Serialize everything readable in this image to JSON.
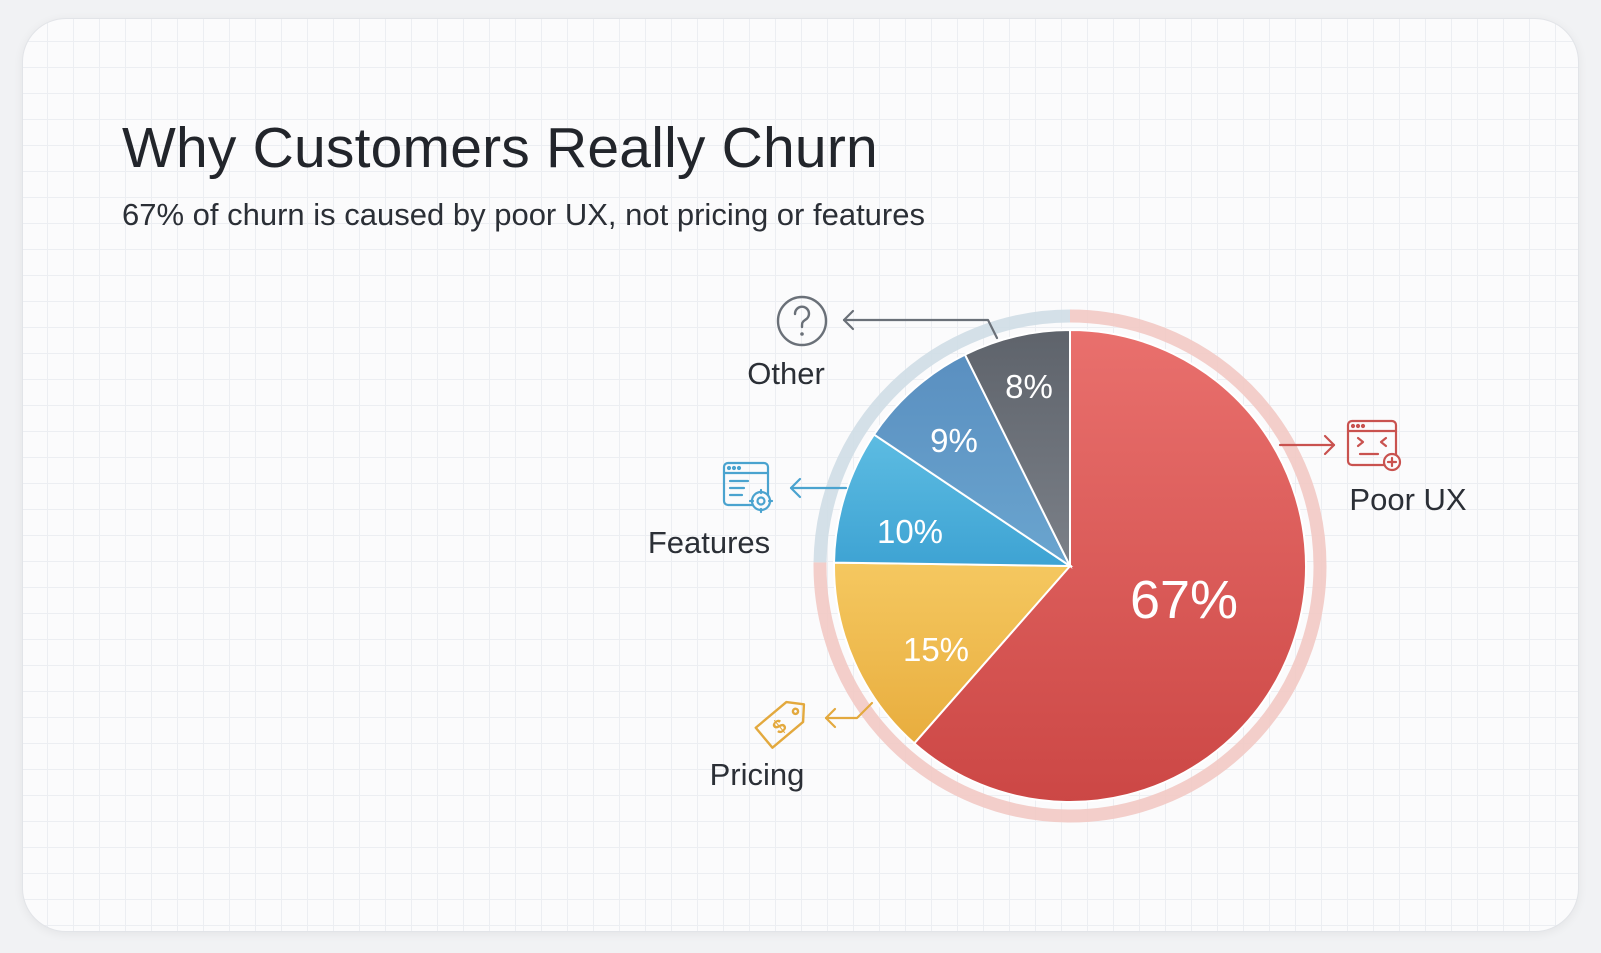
{
  "header": {
    "title": "Why Customers Really Churn",
    "subtitle": "67% of churn is caused by poor UX, not pricing or features"
  },
  "chart_data": {
    "type": "pie",
    "title": "Why Customers Really Churn",
    "subtitle": "67% of churn is caused by poor UX, not pricing or features",
    "slices": [
      {
        "label": "Poor UX",
        "value": 67,
        "display": "67%",
        "color": "#d9534f",
        "icon": "browser-error-icon"
      },
      {
        "label": "Pricing",
        "value": 15,
        "display": "15%",
        "color": "#eebb4d",
        "icon": "price-tag-icon"
      },
      {
        "label": "Features",
        "value": 10,
        "display": "10%",
        "color": "#45a9d6",
        "icon": "feature-settings-icon"
      },
      {
        "label": "9%",
        "value": 9,
        "display": "9%",
        "color": "#5b95c3",
        "icon": ""
      },
      {
        "label": "Other",
        "value": 8,
        "display": "8%",
        "color": "#6e737b",
        "icon": "question-circle-icon"
      }
    ],
    "legend": "none",
    "start_angle": "top",
    "direction": "clockwise"
  }
}
